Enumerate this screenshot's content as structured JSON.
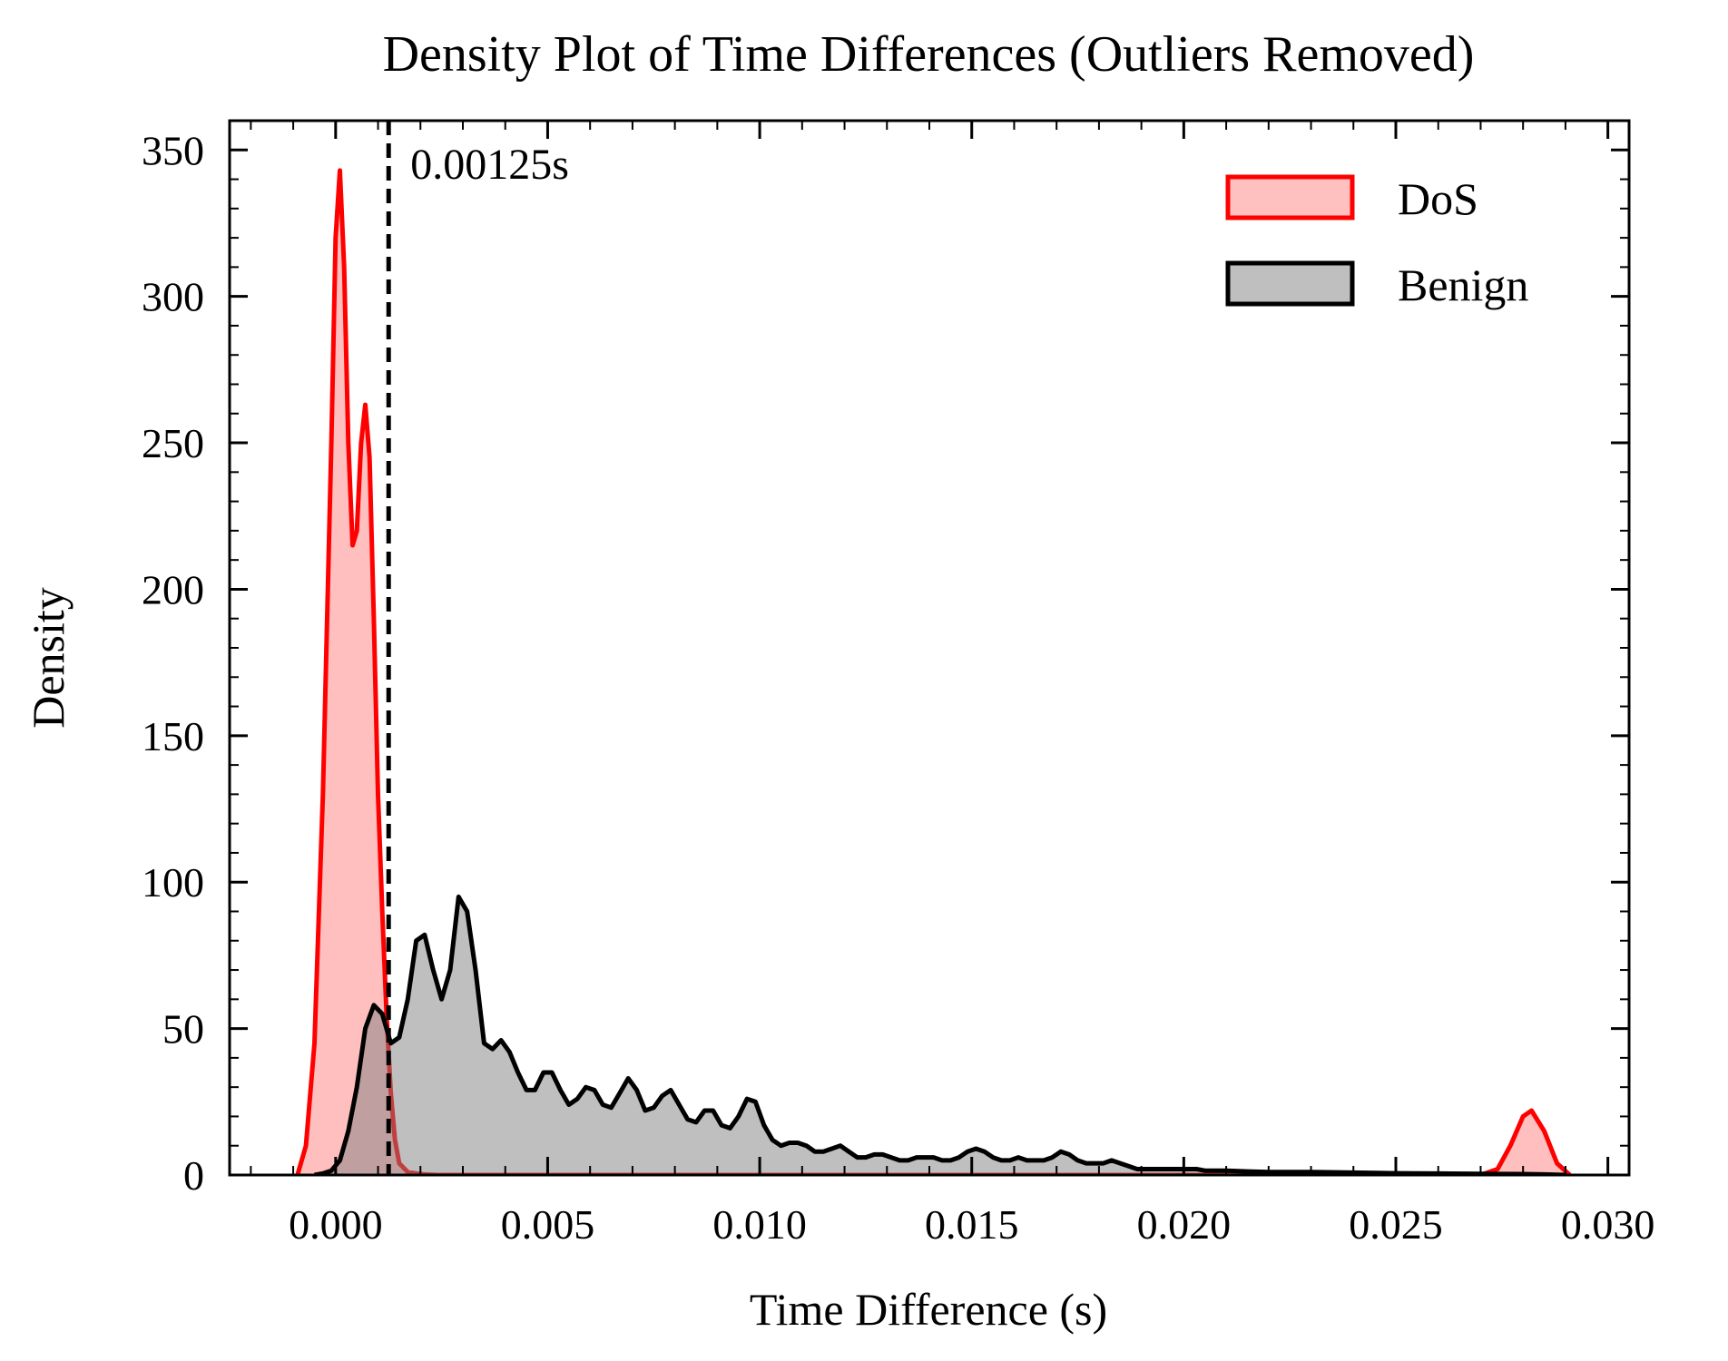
{
  "chart_data": {
    "type": "area",
    "title": "Density Plot of Time Differences (Outliers Removed)",
    "xlabel": "Time Difference (s)",
    "ylabel": "Density",
    "xlim": [
      -0.0025,
      0.0305
    ],
    "ylim": [
      0,
      360
    ],
    "x_ticks": [
      0.0,
      0.005,
      0.01,
      0.015,
      0.02,
      0.025,
      0.03
    ],
    "x_tick_labels": [
      "0.000",
      "0.005",
      "0.010",
      "0.015",
      "0.020",
      "0.025",
      "0.030"
    ],
    "y_ticks": [
      0,
      50,
      100,
      150,
      200,
      250,
      300,
      350
    ],
    "y_tick_labels": [
      "0",
      "50",
      "100",
      "150",
      "200",
      "250",
      "300",
      "350"
    ],
    "grid": false,
    "legend_position": "top-right",
    "series": [
      {
        "name": "DoS",
        "color": "#ff0000",
        "fill": "#ff0000",
        "fill_opacity": 0.25,
        "x": [
          -0.0009,
          -0.0007,
          -0.0005,
          -0.0003,
          -0.0001,
          0.0,
          0.0001,
          0.0002,
          0.0003,
          0.0004,
          0.0005,
          0.0006,
          0.0007,
          0.0008,
          0.0009,
          0.001,
          0.0011,
          0.0012,
          0.0013,
          0.0014,
          0.0015,
          0.0017,
          0.0019,
          0.0021,
          0.0024,
          0.003,
          0.005,
          0.01,
          0.015,
          0.02,
          0.025,
          0.027,
          0.0274,
          0.0277,
          0.028,
          0.0282,
          0.0285,
          0.0288,
          0.0291
        ],
        "y": [
          0,
          10,
          45,
          130,
          250,
          320,
          343,
          310,
          250,
          215,
          220,
          250,
          263,
          245,
          190,
          130,
          90,
          55,
          28,
          12,
          4,
          1,
          0.5,
          0.2,
          0,
          0,
          0,
          0,
          0,
          0,
          0,
          0,
          2,
          10,
          20,
          22,
          15,
          4,
          0
        ]
      },
      {
        "name": "Benign",
        "color": "#000000",
        "fill": "#808080",
        "fill_opacity": 0.5,
        "x": [
          -0.0005,
          -0.0003,
          -0.0001,
          0.0001,
          0.0003,
          0.0005,
          0.0007,
          0.0009,
          0.0011,
          0.0013,
          0.0015,
          0.0017,
          0.0019,
          0.0021,
          0.0023,
          0.0025,
          0.0027,
          0.0029,
          0.0031,
          0.0033,
          0.0035,
          0.0037,
          0.0039,
          0.0041,
          0.0043,
          0.0045,
          0.0047,
          0.0049,
          0.0051,
          0.0053,
          0.0055,
          0.0057,
          0.0059,
          0.0061,
          0.0063,
          0.0065,
          0.0067,
          0.0069,
          0.0071,
          0.0073,
          0.0075,
          0.0077,
          0.0079,
          0.0081,
          0.0083,
          0.0085,
          0.0087,
          0.0089,
          0.0091,
          0.0093,
          0.0095,
          0.0097,
          0.0099,
          0.0101,
          0.0103,
          0.0105,
          0.0107,
          0.0109,
          0.0111,
          0.0113,
          0.0115,
          0.0117,
          0.0119,
          0.0121,
          0.0123,
          0.0125,
          0.0127,
          0.0129,
          0.0131,
          0.0133,
          0.0135,
          0.0137,
          0.0139,
          0.0141,
          0.0143,
          0.0145,
          0.0147,
          0.0149,
          0.0151,
          0.0153,
          0.0155,
          0.0157,
          0.0159,
          0.0161,
          0.0163,
          0.0165,
          0.0167,
          0.0169,
          0.0171,
          0.0173,
          0.0175,
          0.0177,
          0.0179,
          0.0181,
          0.0183,
          0.0185,
          0.0187,
          0.0189,
          0.0191,
          0.0193,
          0.0195,
          0.0197,
          0.0199,
          0.0201,
          0.0203,
          0.0205,
          0.021,
          0.0215,
          0.022,
          0.023,
          0.024,
          0.025,
          0.026,
          0.027,
          0.028,
          0.0285,
          0.029
        ],
        "y": [
          0,
          0.5,
          1.5,
          5,
          15,
          30,
          50,
          58,
          55,
          45,
          47,
          60,
          80,
          82,
          70,
          60,
          70,
          95,
          90,
          70,
          45,
          43,
          46,
          42,
          35,
          29,
          29,
          35,
          35,
          29,
          24,
          26,
          30,
          29,
          24,
          23,
          28,
          33,
          29,
          22,
          23,
          27,
          29,
          24,
          19,
          18,
          22,
          22,
          17,
          16,
          20,
          26,
          25,
          17,
          12,
          10,
          11,
          11,
          10,
          8,
          8,
          9,
          10,
          8,
          6,
          6,
          7,
          7,
          6,
          5,
          5,
          6,
          6,
          6,
          5,
          5,
          6,
          8,
          9,
          8,
          6,
          5,
          5,
          6,
          5,
          5,
          5,
          6,
          8,
          7,
          5,
          4,
          4,
          4,
          5,
          4,
          3,
          2,
          2,
          2,
          2,
          2,
          2,
          2,
          2,
          1.5,
          1.5,
          1.2,
          1,
          1,
          0.8,
          0.6,
          0.5,
          0.4,
          0.3,
          0.2,
          0
        ]
      }
    ],
    "vline": {
      "x": 0.00125,
      "style": "dashed",
      "color": "#000000",
      "label": "0.00125s"
    },
    "legend": [
      {
        "name": "DoS",
        "edge": "#ff0000",
        "face": "#ffc0c0"
      },
      {
        "name": "Benign",
        "edge": "#000000",
        "face": "#bfbfbf"
      }
    ]
  }
}
